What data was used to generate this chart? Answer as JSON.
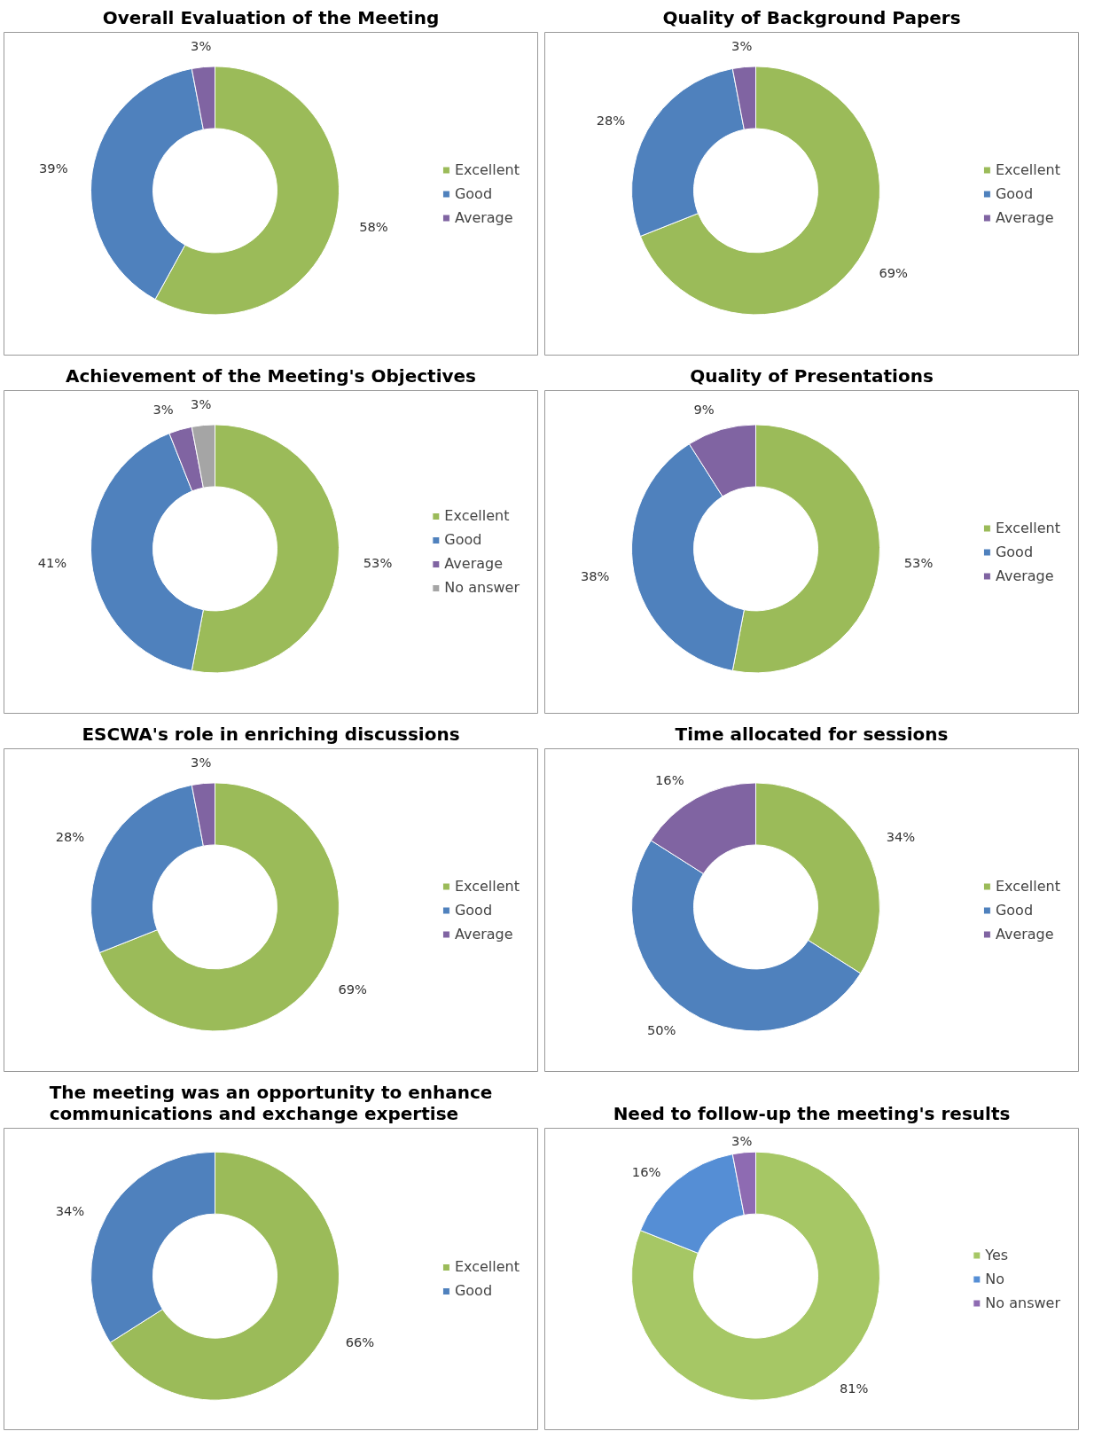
{
  "chart_data": [
    {
      "type": "donut",
      "title": "Overall Evaluation of the Meeting",
      "categories": [
        "Excellent",
        "Good",
        "Average"
      ],
      "values": [
        58,
        39,
        3
      ],
      "value_labels": [
        "58%",
        "39%",
        "3%"
      ],
      "colors": [
        "#9bbb59",
        "#4f81bd",
        "#8064a2"
      ],
      "legend": "right"
    },
    {
      "type": "donut",
      "title": "Quality of Background Papers",
      "categories": [
        "Excellent",
        "Good",
        "Average"
      ],
      "values": [
        69,
        28,
        3
      ],
      "value_labels": [
        "69%",
        "28%",
        "3%"
      ],
      "colors": [
        "#9bbb59",
        "#4f81bd",
        "#8064a2"
      ],
      "legend": "right"
    },
    {
      "type": "donut",
      "title": "Achievement of the Meeting's Objectives",
      "categories": [
        "Excellent",
        "Good",
        "Average",
        "No answer"
      ],
      "values": [
        53,
        41,
        3,
        3
      ],
      "value_labels": [
        "53%",
        "41%",
        "3%",
        "3%"
      ],
      "colors": [
        "#9bbb59",
        "#4f81bd",
        "#8064a2",
        "#a5a5a5"
      ],
      "legend": "right"
    },
    {
      "type": "donut",
      "title": "Quality of Presentations",
      "categories": [
        "Excellent",
        "Good",
        "Average"
      ],
      "values": [
        53,
        38,
        9
      ],
      "value_labels": [
        "53%",
        "38%",
        "9%"
      ],
      "colors": [
        "#9bbb59",
        "#4f81bd",
        "#8064a2"
      ],
      "legend": "right"
    },
    {
      "type": "donut",
      "title": "ESCWA's role in enriching discussions",
      "categories": [
        "Excellent",
        "Good",
        "Average"
      ],
      "values": [
        69,
        28,
        3
      ],
      "value_labels": [
        "69%",
        "28%",
        "3%"
      ],
      "colors": [
        "#9bbb59",
        "#4f81bd",
        "#8064a2"
      ],
      "legend": "right"
    },
    {
      "type": "donut",
      "title": "Time allocated for sessions",
      "categories": [
        "Excellent",
        "Good",
        "Average"
      ],
      "values": [
        34,
        50,
        16
      ],
      "value_labels": [
        "34%",
        "50%",
        "16%"
      ],
      "colors": [
        "#9bbb59",
        "#4f81bd",
        "#8064a2"
      ],
      "legend": "right"
    },
    {
      "type": "donut",
      "title": "The meeting was an opportunity to enhance communications and exchange expertise",
      "categories": [
        "Excellent",
        "Good"
      ],
      "values": [
        66,
        34
      ],
      "value_labels": [
        "66%",
        "34%"
      ],
      "colors": [
        "#9bbb59",
        "#4f81bd"
      ],
      "legend": "right"
    },
    {
      "type": "donut",
      "title": "Need to follow-up the meeting's results",
      "categories": [
        "Yes",
        "No",
        "No answer"
      ],
      "values": [
        81,
        16,
        3
      ],
      "value_labels": [
        "81%",
        "16%",
        "3%"
      ],
      "colors": [
        "#a6c765",
        "#558ed5",
        "#8e6bb2"
      ],
      "legend": "right"
    }
  ]
}
